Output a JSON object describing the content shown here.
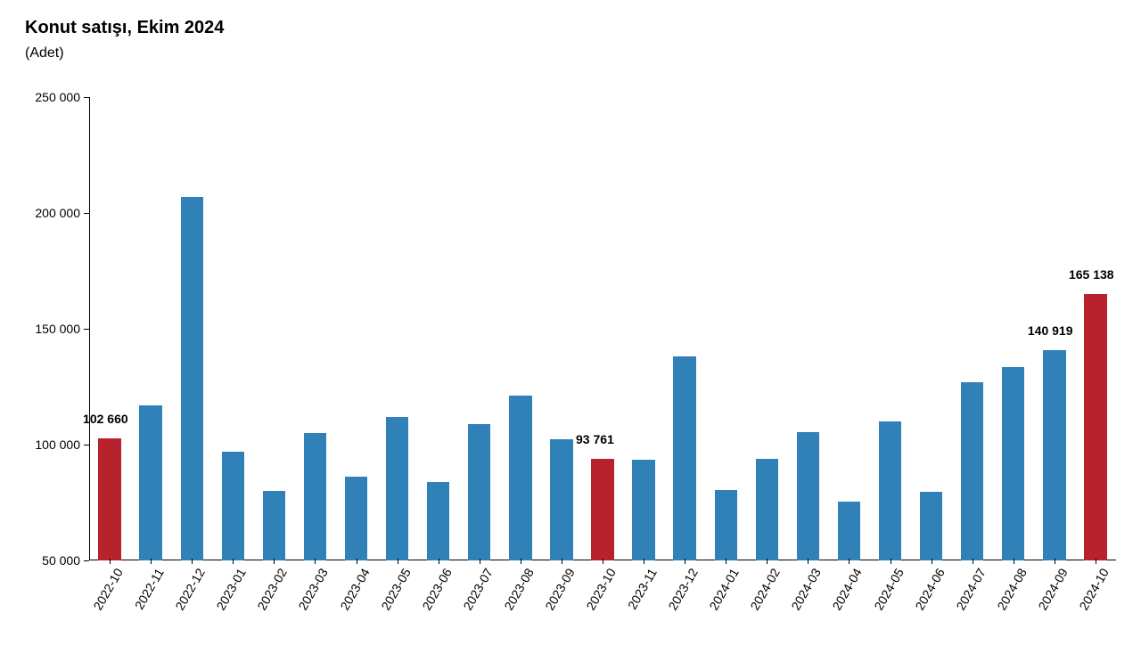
{
  "title": "Konut satışı, Ekim 2024",
  "subtitle": "(Adet)",
  "chart": {
    "type": "bar",
    "ylim": [
      50000,
      250000
    ],
    "yticks": [
      50000,
      100000,
      150000,
      200000,
      250000
    ],
    "ytick_labels": [
      "50 000",
      "100 000",
      "150 000",
      "200 000",
      "250 000"
    ],
    "background_color": "#ffffff",
    "axis_color": "#000000",
    "bar_width": 0.55,
    "title_fontsize": 20,
    "label_fontsize": 14,
    "colors": {
      "default": "#2f81b7",
      "highlight": "#b8222d"
    },
    "categories": [
      "2022-10",
      "2022-11",
      "2022-12",
      "2023-01",
      "2023-02",
      "2023-03",
      "2023-04",
      "2023-05",
      "2023-06",
      "2023-07",
      "2023-08",
      "2023-09",
      "2023-10",
      "2023-11",
      "2023-12",
      "2024-01",
      "2024-02",
      "2024-03",
      "2024-04",
      "2024-05",
      "2024-06",
      "2024-07",
      "2024-08",
      "2024-09",
      "2024-10"
    ],
    "values": [
      102660,
      117000,
      207000,
      97000,
      80000,
      105000,
      86000,
      112000,
      84000,
      109000,
      121000,
      102500,
      93761,
      93500,
      138000,
      80500,
      94000,
      105500,
      75500,
      110000,
      79500,
      127000,
      133500,
      140919,
      165138
    ],
    "highlight_indices": [
      0,
      12,
      24
    ],
    "value_labels": [
      {
        "index": 0,
        "text": "102 660",
        "dy_above": 14
      },
      {
        "index": 12,
        "text": "93 761",
        "dy_above": 14
      },
      {
        "index": 23,
        "text": "140 919",
        "dy_above": 14
      },
      {
        "index": 24,
        "text": "165 138",
        "dy_above": 14
      }
    ]
  }
}
